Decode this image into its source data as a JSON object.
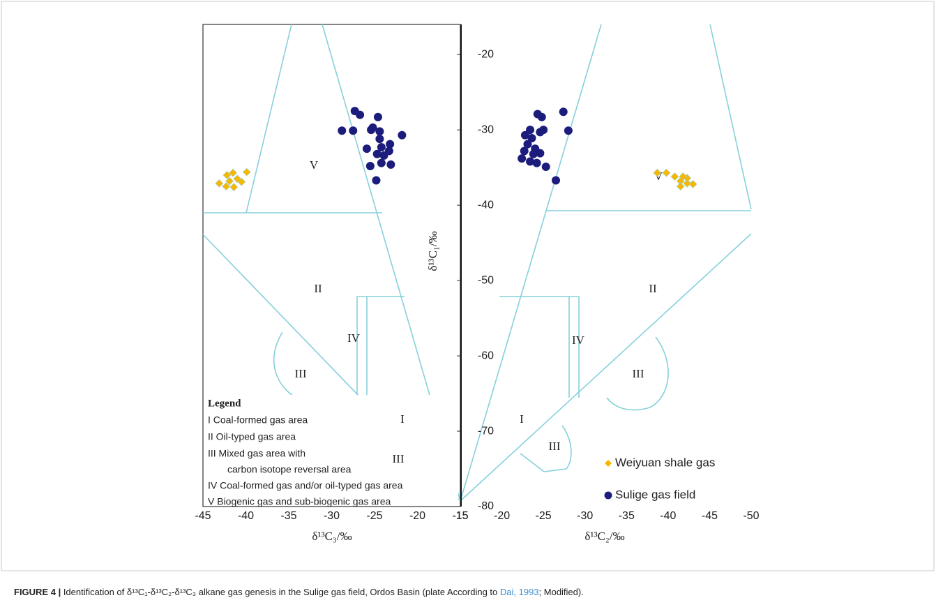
{
  "chart_data": [
    {
      "type": "scatter",
      "x_label": "δ¹³C₃/‰",
      "xlim": [
        -45,
        -15
      ],
      "xticks": [
        -45,
        -40,
        -35,
        -30,
        -25,
        -20,
        -15
      ],
      "ylim": [
        -80,
        -16
      ],
      "region_labels": [
        "V",
        "II",
        "III",
        "IV",
        "I",
        "III"
      ],
      "series": [
        {
          "color": "#f5b800",
          "marker": "diamond",
          "x": [
            -43.1,
            -42.3,
            -41.4,
            -41.9,
            -40.5,
            -39.9,
            -42.2,
            -41.5,
            -41.0
          ],
          "values": [
            -37.1,
            -37.5,
            -37.6,
            -36.8,
            -36.9,
            -35.6,
            -36.0,
            -35.7,
            -36.5
          ]
        },
        {
          "color": "#1c1c7c",
          "marker": "circle",
          "x": [
            -24.8,
            -25.5,
            -24.2,
            -23.1,
            -24.7,
            -23.9,
            -23.3,
            -24.2,
            -25.9,
            -24.4,
            -23.2,
            -21.8,
            -24.4,
            -25.4,
            -28.8,
            -27.5,
            -27.3,
            -26.7,
            -24.6,
            -25.2
          ],
          "values": [
            -36.7,
            -34.8,
            -34.4,
            -34.6,
            -33.2,
            -33.4,
            -32.8,
            -32.3,
            -32.5,
            -31.2,
            -31.9,
            -30.7,
            -30.2,
            -30.0,
            -30.1,
            -30.1,
            -27.5,
            -28.0,
            -28.3,
            -29.7
          ]
        }
      ]
    },
    {
      "type": "scatter",
      "x_label": "δ¹³C₂/‰",
      "y_label": "δ¹³C₁/‰",
      "xlim": [
        -15,
        -50
      ],
      "xticks": [
        -15,
        -20,
        -25,
        -30,
        -35,
        -40,
        -45,
        -50
      ],
      "ylim": [
        -80,
        -16
      ],
      "yticks": [
        -80,
        -70,
        -60,
        -50,
        -40,
        -30,
        -20
      ],
      "region_labels": [
        "V",
        "II",
        "III",
        "IV",
        "I",
        "III"
      ],
      "series": [
        {
          "name": "Weiyuan shale gas",
          "color": "#f5b800",
          "marker": "diamond",
          "x": [
            -38.7,
            -39.8,
            -40.8,
            -41.5,
            -41.5,
            -42.3,
            -43.0,
            -42.3,
            -41.8
          ],
          "values": [
            -35.7,
            -35.7,
            -36.2,
            -36.8,
            -37.5,
            -37.1,
            -37.2,
            -36.4,
            -36.2
          ]
        },
        {
          "name": "Sulige gas field",
          "color": "#1c1c7c",
          "marker": "circle",
          "x": [
            -22.4,
            -22.7,
            -23.1,
            -23.4,
            -23.8,
            -24.2,
            -24.6,
            -25.3,
            -26.5,
            -22.8,
            -23.4,
            -24.6,
            -25.0,
            -24.3,
            -24.8,
            -27.4,
            -28.0,
            -23.6,
            -24.0
          ],
          "values": [
            -33.8,
            -32.8,
            -31.9,
            -34.2,
            -33.2,
            -34.4,
            -33.1,
            -34.9,
            -36.7,
            -30.7,
            -30.0,
            -30.3,
            -30.0,
            -27.9,
            -28.3,
            -27.6,
            -30.1,
            -31.1,
            -32.5
          ]
        }
      ]
    }
  ],
  "legend": {
    "title": "Legend",
    "items": [
      "I Coal-formed gas area",
      "II  Oil-typed gas area",
      "III  Mixed gas area with",
      "carbon isotope reversal area",
      "IV Coal-formed gas and/or oil-typed gas area",
      "V Biogenic gas and sub-biogenic gas area"
    ]
  },
  "caption": {
    "label": "FIGURE 4 |",
    "text": " Identification of δ¹³C₁-δ¹³C₂-δ¹³C₃ alkane gas genesis in the Sulige gas field, Ordos Basin (plate According to ",
    "link": "Dai, 1993",
    "end": "; Modified)."
  }
}
